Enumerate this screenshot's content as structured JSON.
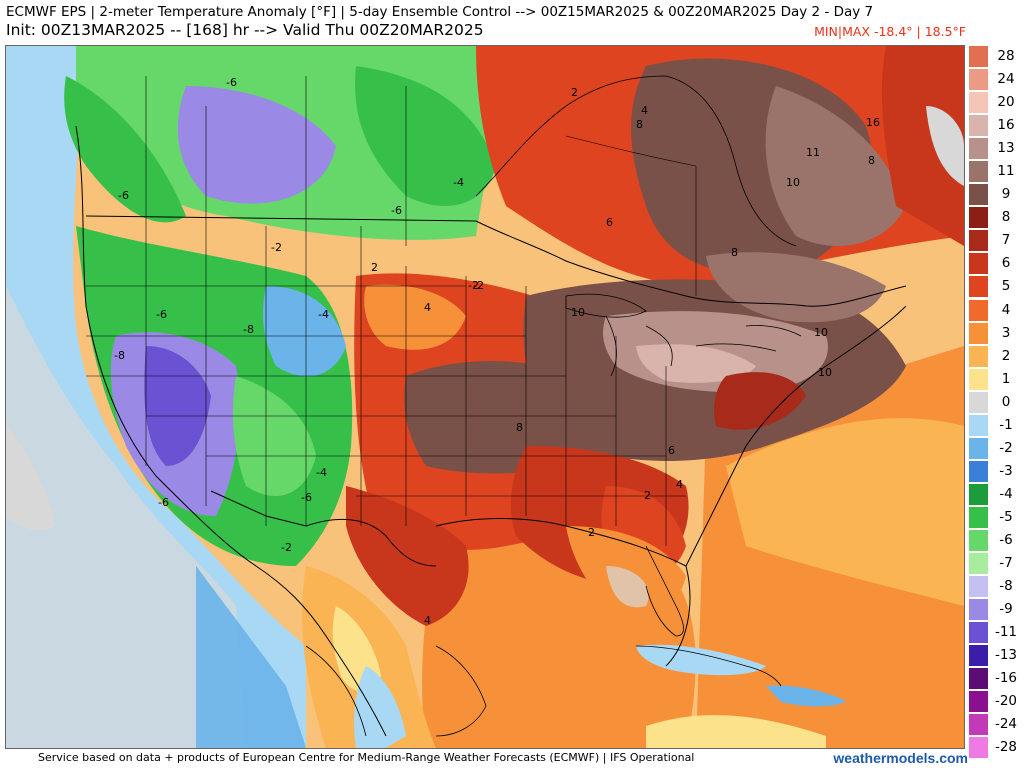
{
  "header": {
    "line1": "ECMWF EPS | 2-meter Temperature Anomaly [°F] | 5-day Ensemble Control --> 00Z15MAR2025 & 00Z20MAR2025   Day 2 - Day 7",
    "line2": "Init: 00Z13MAR2025 -- [168] hr --> Valid Thu 00Z20MAR2025",
    "minmax": "MIN|MAX -18.4° | 18.5°F"
  },
  "footer": {
    "credit": "Service based on data + products of European Centre for Medium-Range Weather Forecasts (ECMWF) | IFS Operational",
    "brand": "weathermodels.com"
  },
  "colorbar": [
    {
      "label": "28",
      "color": "#e07050"
    },
    {
      "label": "24",
      "color": "#ec9a86"
    },
    {
      "label": "20",
      "color": "#f5c6b8"
    },
    {
      "label": "16",
      "color": "#d9b4ac"
    },
    {
      "label": "13",
      "color": "#b8928a"
    },
    {
      "label": "11",
      "color": "#9a746b"
    },
    {
      "label": "9",
      "color": "#7a5148"
    },
    {
      "label": "8",
      "color": "#8b1f16"
    },
    {
      "label": "7",
      "color": "#a82a1a"
    },
    {
      "label": "6",
      "color": "#c8371c"
    },
    {
      "label": "5",
      "color": "#df4420"
    },
    {
      "label": "4",
      "color": "#f06a2c"
    },
    {
      "label": "3",
      "color": "#f6913a"
    },
    {
      "label": "2",
      "color": "#fab453"
    },
    {
      "label": "1",
      "color": "#fde28c"
    },
    {
      "label": "0",
      "color": "#d8d8d8"
    },
    {
      "label": "-1",
      "color": "#a9d8f4"
    },
    {
      "label": "-2",
      "color": "#6ab4ea"
    },
    {
      "label": "-3",
      "color": "#3a7fd8"
    },
    {
      "label": "-4",
      "color": "#1c9c3a"
    },
    {
      "label": "-5",
      "color": "#36c04a"
    },
    {
      "label": "-6",
      "color": "#66d86a"
    },
    {
      "label": "-7",
      "color": "#a8eca0"
    },
    {
      "label": "-8",
      "color": "#c6c0f2"
    },
    {
      "label": "-9",
      "color": "#9a8ae6"
    },
    {
      "label": "-11",
      "color": "#6a52d2"
    },
    {
      "label": "-13",
      "color": "#3a1eaa"
    },
    {
      "label": "-16",
      "color": "#5c0c74"
    },
    {
      "label": "-20",
      "color": "#8a1090"
    },
    {
      "label": "-24",
      "color": "#c23ab8"
    },
    {
      "label": "-28",
      "color": "#ee7ae4"
    }
  ],
  "map_contour_labels": [
    "-6",
    "-6",
    "-6",
    "-4",
    "-6",
    "-2",
    "-2",
    "-6",
    "-8",
    "-8",
    "-4",
    "-4",
    "-6",
    "-2",
    "2",
    "-2",
    "4",
    "10",
    "10",
    "4",
    "8",
    "16",
    "11",
    "10",
    "8",
    "10",
    "6",
    "4",
    "2",
    "2",
    "8",
    "6",
    "2",
    "4",
    "8"
  ]
}
